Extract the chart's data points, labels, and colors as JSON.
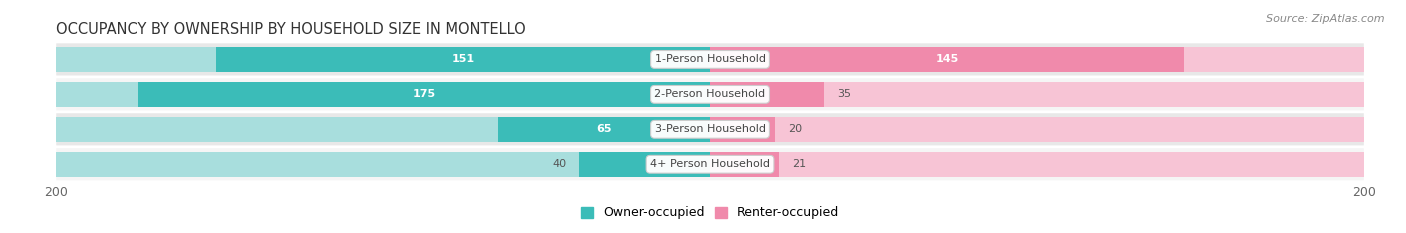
{
  "title": "OCCUPANCY BY OWNERSHIP BY HOUSEHOLD SIZE IN MONTELLO",
  "source": "Source: ZipAtlas.com",
  "categories": [
    "1-Person Household",
    "2-Person Household",
    "3-Person Household",
    "4+ Person Household"
  ],
  "owner_values": [
    151,
    175,
    65,
    40
  ],
  "renter_values": [
    145,
    35,
    20,
    21
  ],
  "owner_color": "#3bbcb8",
  "renter_color": "#f08aab",
  "owner_color_light": "#a8dedd",
  "renter_color_light": "#f7c4d5",
  "row_bg_colors": [
    "#e8e8e8",
    "#f5f5f5",
    "#e8e8e8",
    "#f5f5f5"
  ],
  "max_val": 200,
  "title_fontsize": 10.5,
  "source_fontsize": 8,
  "label_fontsize": 8,
  "value_fontsize": 8,
  "legend_fontsize": 9,
  "bar_height": 0.72
}
